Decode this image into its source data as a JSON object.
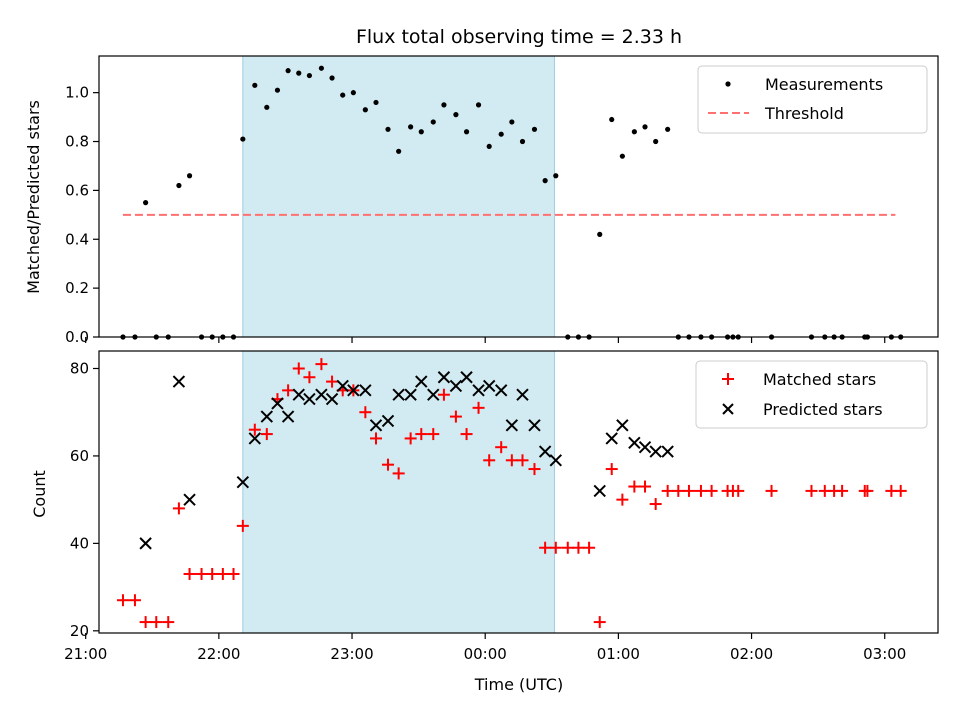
{
  "chart_data": [
    {
      "type": "scatter",
      "title": "Flux total observing time = 2.33 h",
      "xlabel": "",
      "ylabel": "Matched/Predicted stars",
      "x_range_hours": [
        21.1,
        27.4
      ],
      "ylim": [
        0,
        1.15
      ],
      "yticks": [
        0.0,
        0.2,
        0.4,
        0.6,
        0.8,
        1.0
      ],
      "ytick_labels": [
        "0.0",
        "0.2",
        "0.4",
        "0.6",
        "0.8",
        "1.0"
      ],
      "xticks": [
        21,
        22,
        23,
        24,
        25,
        26,
        27
      ],
      "xtick_labels": [],
      "highlight_span": [
        22.18,
        24.52
      ],
      "threshold": {
        "value": 0.5,
        "x_start": 21.28,
        "x_end": 27.08,
        "color": "#ff7070"
      },
      "legend": {
        "position": "top-right",
        "entries": [
          "Measurements",
          "Threshold"
        ]
      },
      "series": [
        {
          "name": "Measurements",
          "color": "#000000",
          "x": [
            21.28,
            21.37,
            21.45,
            21.53,
            21.62,
            21.7,
            21.78,
            21.87,
            21.95,
            22.03,
            22.11,
            22.18,
            22.27,
            22.36,
            22.44,
            22.52,
            22.6,
            22.68,
            22.77,
            22.85,
            22.93,
            23.01,
            23.1,
            23.18,
            23.27,
            23.35,
            23.44,
            23.52,
            23.61,
            23.69,
            23.78,
            23.86,
            23.95,
            24.03,
            24.12,
            24.2,
            24.28,
            24.37,
            24.45,
            24.53,
            24.62,
            24.7,
            24.78,
            24.86,
            24.95,
            25.03,
            25.12,
            25.2,
            25.28,
            25.37,
            25.45,
            25.53,
            25.62,
            25.7,
            25.82,
            25.86,
            25.9,
            26.15,
            26.45,
            26.55,
            26.62,
            26.68,
            26.85,
            26.87,
            27.05,
            27.12
          ],
          "y": [
            0.0,
            0.0,
            0.55,
            0.0,
            0.0,
            0.62,
            0.66,
            0.0,
            0.0,
            0.0,
            0.0,
            0.81,
            1.03,
            0.94,
            1.01,
            1.09,
            1.08,
            1.07,
            1.1,
            1.06,
            0.99,
            1.0,
            0.93,
            0.96,
            0.85,
            0.76,
            0.86,
            0.84,
            0.88,
            0.95,
            0.91,
            0.84,
            0.95,
            0.78,
            0.83,
            0.88,
            0.8,
            0.85,
            0.64,
            0.66,
            0.0,
            0.0,
            0.0,
            0.42,
            0.89,
            0.74,
            0.84,
            0.86,
            0.8,
            0.85,
            0.0,
            0.0,
            0.0,
            0.0,
            0.0,
            0.0,
            0.0,
            0.0,
            0.0,
            0.0,
            0.0,
            0.0,
            0.0,
            0.0,
            0.0,
            0.0
          ]
        }
      ]
    },
    {
      "type": "scatter",
      "title": "",
      "xlabel": "Time (UTC)",
      "ylabel": "Count",
      "x_range_hours": [
        21.1,
        27.4
      ],
      "ylim": [
        19.5,
        84
      ],
      "yticks": [
        20,
        40,
        60,
        80
      ],
      "ytick_labels": [
        "20",
        "40",
        "60",
        "80"
      ],
      "xticks": [
        21,
        22,
        23,
        24,
        25,
        26,
        27
      ],
      "xtick_labels": [
        "21:00",
        "22:00",
        "23:00",
        "00:00",
        "01:00",
        "02:00",
        "03:00"
      ],
      "highlight_span": [
        22.18,
        24.52
      ],
      "legend": {
        "position": "top-right",
        "entries": [
          "Matched stars",
          "Predicted stars"
        ]
      },
      "series": [
        {
          "name": "Matched stars",
          "marker": "plus",
          "color": "#ff0000",
          "x": [
            21.28,
            21.37,
            21.45,
            21.53,
            21.62,
            21.7,
            21.78,
            21.87,
            21.95,
            22.03,
            22.11,
            22.18,
            22.27,
            22.36,
            22.44,
            22.52,
            22.6,
            22.68,
            22.77,
            22.85,
            22.93,
            23.01,
            23.1,
            23.18,
            23.27,
            23.35,
            23.44,
            23.52,
            23.61,
            23.69,
            23.78,
            23.86,
            23.95,
            24.03,
            24.12,
            24.2,
            24.28,
            24.37,
            24.45,
            24.53,
            24.62,
            24.7,
            24.78,
            24.86,
            24.95,
            25.03,
            25.12,
            25.2,
            25.28,
            25.37,
            25.45,
            25.53,
            25.62,
            25.7,
            25.82,
            25.86,
            25.9,
            26.15,
            26.45,
            26.55,
            26.62,
            26.68,
            26.85,
            26.87,
            27.05,
            27.12
          ],
          "y": [
            27,
            27,
            22,
            22,
            22,
            48,
            33,
            33,
            33,
            33,
            33,
            44,
            66,
            65,
            73,
            75,
            80,
            78,
            81,
            77,
            75,
            75,
            70,
            64,
            58,
            56,
            64,
            65,
            65,
            74,
            69,
            65,
            71,
            59,
            62,
            59,
            59,
            57,
            39,
            39,
            39,
            39,
            39,
            22,
            57,
            50,
            53,
            53,
            49,
            52,
            52,
            52,
            52,
            52,
            52,
            52,
            52,
            52,
            52,
            52,
            52,
            52,
            52,
            52,
            52,
            52
          ]
        },
        {
          "name": "Predicted stars",
          "marker": "x",
          "color": "#000000",
          "x": [
            21.45,
            21.7,
            21.78,
            22.18,
            22.27,
            22.36,
            22.44,
            22.52,
            22.6,
            22.68,
            22.77,
            22.85,
            22.93,
            23.01,
            23.1,
            23.18,
            23.27,
            23.35,
            23.44,
            23.52,
            23.61,
            23.69,
            23.78,
            23.86,
            23.95,
            24.03,
            24.12,
            24.2,
            24.28,
            24.37,
            24.45,
            24.53,
            24.86,
            24.95,
            25.03,
            25.12,
            25.2,
            25.28,
            25.37
          ],
          "y": [
            40,
            77,
            50,
            54,
            64,
            69,
            72,
            69,
            74,
            73,
            74,
            73,
            76,
            75,
            75,
            67,
            68,
            74,
            74,
            77,
            74,
            78,
            76,
            78,
            75,
            76,
            75,
            67,
            74,
            67,
            61,
            59,
            52,
            64,
            67,
            63,
            62,
            61,
            61
          ]
        }
      ]
    }
  ]
}
